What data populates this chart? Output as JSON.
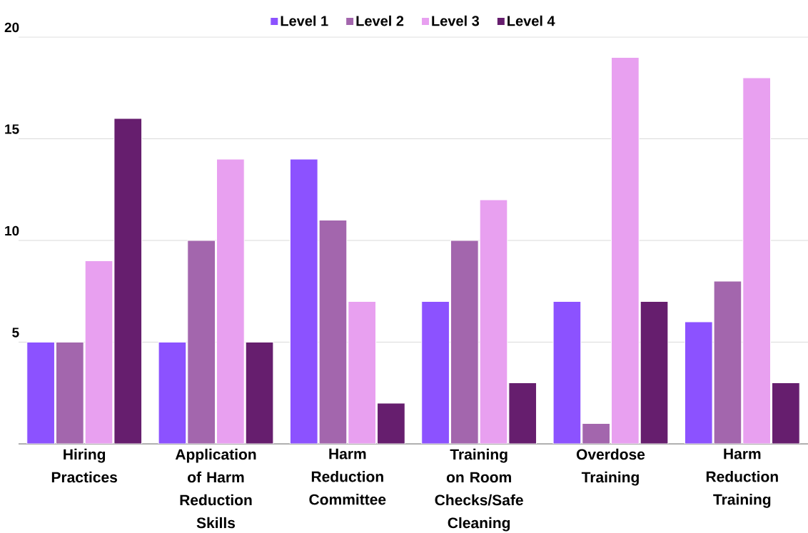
{
  "chart_data": {
    "type": "bar",
    "categories": [
      "Hiring Practices",
      "Application of Harm Reduction Skills",
      "Harm Reduction Committee",
      "Training on Room Checks/Safe Cleaning",
      "Overdose Training",
      "Harm Reduction Training"
    ],
    "series": [
      {
        "name": "Level 1",
        "color": "#8c52ff",
        "values": [
          5,
          5,
          14,
          7,
          7,
          6
        ]
      },
      {
        "name": "Level 2",
        "color": "#a366ad",
        "values": [
          5,
          10,
          11,
          10,
          1,
          8
        ]
      },
      {
        "name": "Level 3",
        "color": "#e8a0f0",
        "values": [
          9,
          14,
          7,
          12,
          19,
          18
        ]
      },
      {
        "name": "Level 4",
        "color": "#661e6e",
        "values": [
          16,
          5,
          2,
          3,
          7,
          3
        ]
      }
    ],
    "ylim": [
      0,
      20
    ],
    "yticks": [
      5,
      10,
      15,
      20
    ],
    "grid": "y",
    "legend": "top"
  }
}
